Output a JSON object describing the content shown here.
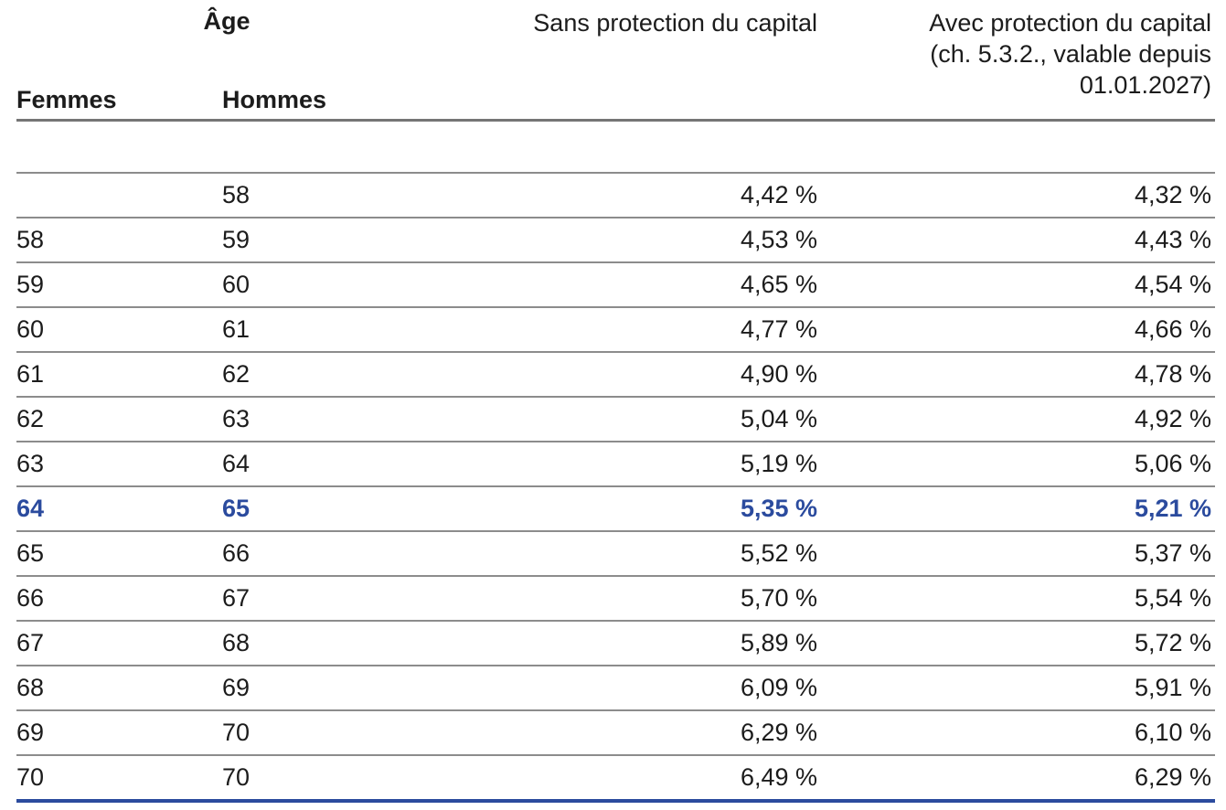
{
  "table": {
    "header": {
      "age_group_label": "Âge",
      "col_femmes": "Femmes",
      "col_hommes": "Hommes",
      "col_sans": "Sans protection du capital",
      "col_avec_line1": "Avec protection du capital",
      "col_avec_line2": "(ch. 5.3.2., valable depuis",
      "col_avec_line3": "01.01.2027)"
    },
    "rows": [
      {
        "femmes": "",
        "hommes": "58",
        "sans": "4,42 %",
        "avec": "4,32 %",
        "highlight": false
      },
      {
        "femmes": "58",
        "hommes": "59",
        "sans": "4,53 %",
        "avec": "4,43 %",
        "highlight": false
      },
      {
        "femmes": "59",
        "hommes": "60",
        "sans": "4,65 %",
        "avec": "4,54 %",
        "highlight": false
      },
      {
        "femmes": "60",
        "hommes": "61",
        "sans": "4,77 %",
        "avec": "4,66 %",
        "highlight": false
      },
      {
        "femmes": "61",
        "hommes": "62",
        "sans": "4,90 %",
        "avec": "4,78 %",
        "highlight": false
      },
      {
        "femmes": "62",
        "hommes": "63",
        "sans": "5,04 %",
        "avec": "4,92 %",
        "highlight": false
      },
      {
        "femmes": "63",
        "hommes": "64",
        "sans": "5,19 %",
        "avec": "5,06 %",
        "highlight": false
      },
      {
        "femmes": "64",
        "hommes": "65",
        "sans": "5,35 %",
        "avec": "5,21 %",
        "highlight": true
      },
      {
        "femmes": "65",
        "hommes": "66",
        "sans": "5,52 %",
        "avec": "5,37 %",
        "highlight": false
      },
      {
        "femmes": "66",
        "hommes": "67",
        "sans": "5,70 %",
        "avec": "5,54 %",
        "highlight": false
      },
      {
        "femmes": "67",
        "hommes": "68",
        "sans": "5,89 %",
        "avec": "5,72 %",
        "highlight": false
      },
      {
        "femmes": "68",
        "hommes": "69",
        "sans": "6,09 %",
        "avec": "5,91 %",
        "highlight": false
      },
      {
        "femmes": "69",
        "hommes": "70",
        "sans": "6,29 %",
        "avec": "6,10 %",
        "highlight": false
      },
      {
        "femmes": "70",
        "hommes": "70",
        "sans": "6,49 %",
        "avec": "6,29 %",
        "highlight": false
      }
    ],
    "colors": {
      "highlight_text": "#2b4b9e",
      "row_separator": "#8c8c8c",
      "header_underline": "#757575",
      "bottom_border": "#2b4b9e"
    }
  }
}
